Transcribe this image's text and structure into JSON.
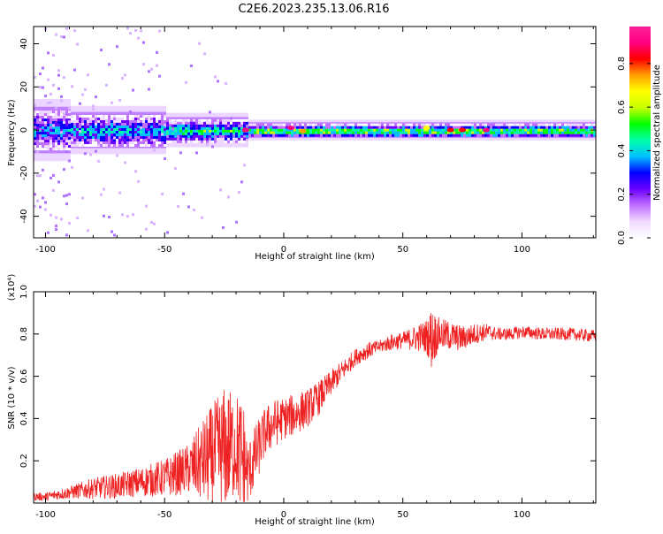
{
  "title": "C2E6.2023.235.13.06.R16",
  "colors": {
    "snr_line": "#ee2222",
    "axis": "#000000"
  },
  "chart_data": [
    {
      "type": "heatmap",
      "title": "C2E6.2023.235.13.06.R16",
      "xlabel": "Height of straight line (km)",
      "ylabel": "Frequency (Hz)",
      "xlim": [
        -105,
        131
      ],
      "ylim": [
        -50,
        48
      ],
      "xticks": [
        -100,
        -50,
        0,
        50,
        100
      ],
      "yticks": [
        -40,
        -20,
        0,
        20,
        40
      ],
      "colorbar": {
        "label": "Normalized spectral amplitude",
        "range": [
          0,
          0.97
        ],
        "ticks": [
          0.0,
          0.2,
          0.4,
          0.6,
          0.8
        ],
        "colormap": [
          "#ffffff",
          "#f0d8ff",
          "#c070ff",
          "#6a00ff",
          "#0000ff",
          "#00c0ff",
          "#00ffaa",
          "#00ff00",
          "#c8ff00",
          "#ffff00",
          "#ffa000",
          "#ff0000",
          "#ff0080",
          "#ff1f9a"
        ]
      },
      "bands": [
        {
          "x_range": [
            -105,
            -90
          ],
          "half_width_hz": 9,
          "dominant_amplitude": 0.35,
          "scatter": 0.7
        },
        {
          "x_range": [
            -90,
            -50
          ],
          "half_width_hz": 7,
          "dominant_amplitude": 0.4,
          "scatter": 0.35
        },
        {
          "x_range": [
            -50,
            -15
          ],
          "half_width_hz": 5,
          "dominant_amplitude": 0.5,
          "scatter": 0.15
        },
        {
          "x_range": [
            -15,
            131
          ],
          "half_width_hz": 3,
          "dominant_amplitude": 0.6,
          "scatter": 0.02
        }
      ],
      "peaks": [
        {
          "x": -16,
          "y": 0,
          "amplitude": 0.95
        },
        {
          "x": 3,
          "y": 1,
          "amplitude": 0.95
        },
        {
          "x": 8,
          "y": -0.5,
          "amplitude": 0.8
        },
        {
          "x": 70,
          "y": 0,
          "amplitude": 0.85
        },
        {
          "x": 75,
          "y": 0,
          "amplitude": 0.85
        },
        {
          "x": 85,
          "y": 0,
          "amplitude": 0.95
        },
        {
          "x": 60,
          "y": 1,
          "amplitude": 0.7
        }
      ]
    },
    {
      "type": "line",
      "xlabel": "Height of straight line (km)",
      "ylabel": "SNR (10 * v/v)",
      "y_multiplier_label": "(x10⁴)",
      "xlim": [
        -105,
        131
      ],
      "ylim": [
        0.0,
        1.0
      ],
      "xticks": [
        -100,
        -50,
        0,
        50,
        100
      ],
      "yticks": [
        0.2,
        0.4,
        0.6,
        0.8,
        1.0
      ],
      "series": [
        {
          "x": [
            -105,
            -100,
            -90,
            -80,
            -70,
            -60,
            -50,
            -40,
            -30,
            -25,
            -20,
            -17,
            -15,
            -12,
            -8,
            -5,
            0,
            5,
            10,
            15,
            20,
            25,
            30,
            35,
            40,
            45,
            50,
            55,
            60,
            62,
            65,
            70,
            75,
            80,
            85,
            90,
            95,
            100,
            110,
            120,
            131
          ],
          "values": [
            0.03,
            0.03,
            0.05,
            0.07,
            0.08,
            0.1,
            0.12,
            0.16,
            0.22,
            0.25,
            0.28,
            0.2,
            0.14,
            0.22,
            0.33,
            0.37,
            0.4,
            0.42,
            0.45,
            0.5,
            0.57,
            0.63,
            0.69,
            0.72,
            0.74,
            0.76,
            0.77,
            0.78,
            0.79,
            0.78,
            0.8,
            0.79,
            0.78,
            0.8,
            0.81,
            0.8,
            0.8,
            0.81,
            0.8,
            0.8,
            0.79
          ],
          "noise": [
            0.02,
            0.02,
            0.03,
            0.05,
            0.06,
            0.07,
            0.09,
            0.12,
            0.25,
            0.3,
            0.25,
            0.3,
            0.15,
            0.15,
            0.12,
            0.12,
            0.1,
            0.1,
            0.09,
            0.08,
            0.06,
            0.05,
            0.04,
            0.04,
            0.03,
            0.04,
            0.04,
            0.06,
            0.08,
            0.15,
            0.08,
            0.07,
            0.06,
            0.05,
            0.04,
            0.03,
            0.03,
            0.03,
            0.03,
            0.03,
            0.03
          ]
        }
      ]
    }
  ]
}
